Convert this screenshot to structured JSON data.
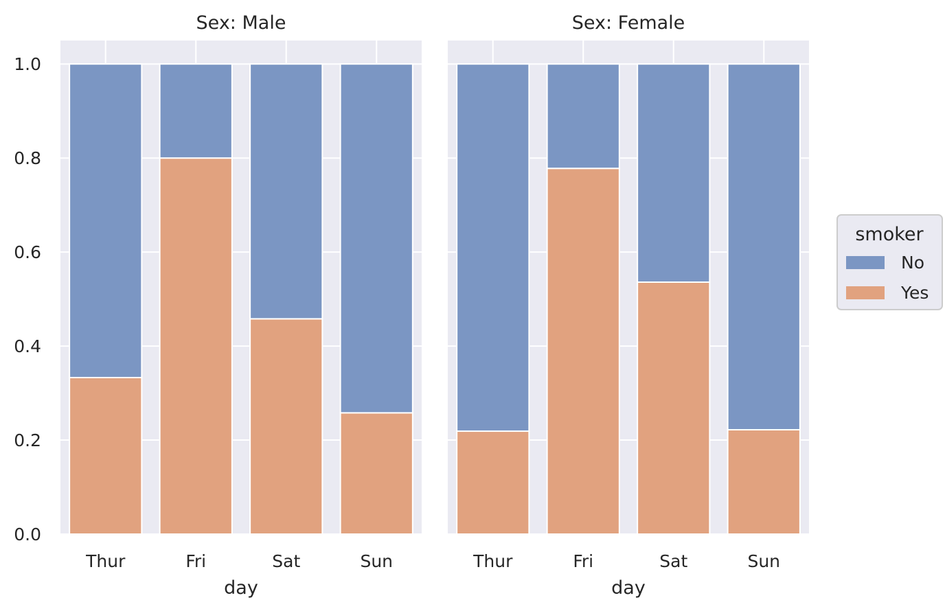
{
  "chart_data": {
    "type": "bar",
    "stacked": true,
    "normalized": true,
    "ylim": [
      0,
      1.05
    ],
    "yticks": [
      0.0,
      0.2,
      0.4,
      0.6,
      0.8,
      1.0
    ],
    "ytick_labels": [
      "0.0",
      "0.2",
      "0.4",
      "0.6",
      "0.8",
      "1.0"
    ],
    "grid": true,
    "legend": {
      "title": "smoker",
      "placement": "right",
      "entries": [
        {
          "label": "No",
          "color": "#7b96c3"
        },
        {
          "label": "Yes",
          "color": "#e1a27f"
        }
      ]
    },
    "panels": [
      {
        "title": "Sex: Male",
        "xlabel": "day",
        "categories": [
          "Thur",
          "Fri",
          "Sat",
          "Sun"
        ],
        "series": [
          {
            "name": "No",
            "values": [
              0.667,
              0.2,
              0.542,
              0.742
            ]
          },
          {
            "name": "Yes",
            "values": [
              0.333,
              0.8,
              0.458,
              0.258
            ]
          }
        ]
      },
      {
        "title": "Sex: Female",
        "xlabel": "day",
        "categories": [
          "Thur",
          "Fri",
          "Sat",
          "Sun"
        ],
        "series": [
          {
            "name": "No",
            "values": [
              0.781,
              0.222,
              0.464,
              0.778
            ]
          },
          {
            "name": "Yes",
            "values": [
              0.219,
              0.778,
              0.536,
              0.222
            ]
          }
        ]
      }
    ]
  },
  "colors": {
    "panel_bg": "#eaeaf2",
    "grid": "#ffffff",
    "no": "#7b96c3",
    "yes": "#e1a27f"
  }
}
